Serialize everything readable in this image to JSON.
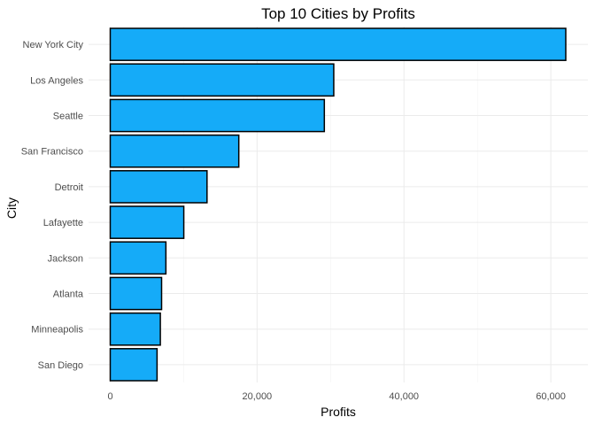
{
  "chart_data": {
    "type": "bar",
    "orientation": "horizontal",
    "title": "Top 10 Cities by Profits",
    "xlabel": "Profits",
    "ylabel": "City",
    "categories": [
      "New York City",
      "Los Angeles",
      "Seattle",
      "San Francisco",
      "Detroit",
      "Lafayette",
      "Jackson",
      "Atlanta",
      "Minneapolis",
      "San Diego"
    ],
    "values": [
      62037,
      30440,
      29157,
      17507,
      13181,
      10018,
      7581,
      6994,
      6824,
      6377
    ],
    "xlim": [
      0,
      62037
    ],
    "xticks": [
      0,
      20000,
      40000,
      60000
    ],
    "xtick_labels": [
      "0",
      "20,000",
      "40,000",
      "60,000"
    ],
    "grid": true,
    "bar_color": "#15ABF8",
    "bar_outline": "#000000"
  }
}
